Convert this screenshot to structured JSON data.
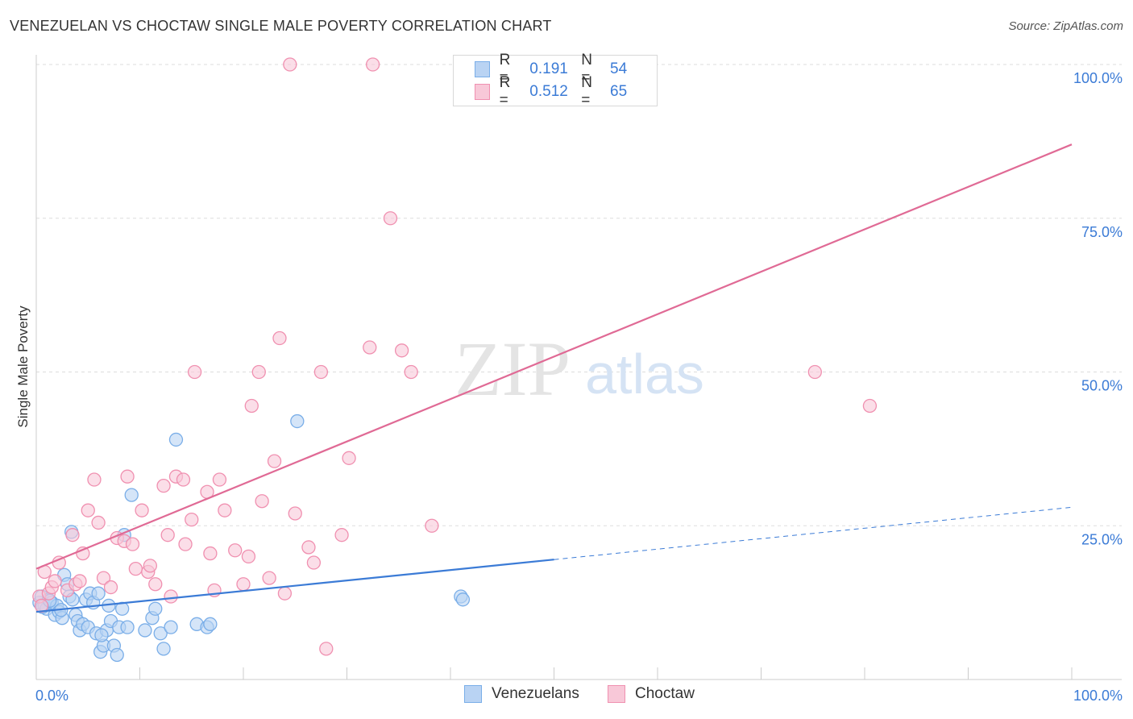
{
  "header": {
    "title": "VENEZUELAN VS CHOCTAW SINGLE MALE POVERTY CORRELATION CHART",
    "source": "Source: ZipAtlas.com"
  },
  "legend": {
    "rows": [
      {
        "r_label": "R =",
        "r_value": "0.191",
        "n_label": "N =",
        "n_value": "54",
        "color": "#7aaee8",
        "fill": "#b9d3f3"
      },
      {
        "r_label": "R =",
        "r_value": "0.512",
        "n_label": "N =",
        "n_value": "65",
        "color": "#f090b0",
        "fill": "#f8c8d8"
      }
    ]
  },
  "bottom_legend": [
    {
      "label": "Venezuelans",
      "color": "#7aaee8",
      "fill": "#b9d3f3"
    },
    {
      "label": "Choctaw",
      "color": "#f090b0",
      "fill": "#f8c8d8"
    }
  ],
  "watermark": {
    "zip": "ZIP",
    "atlas": "atlas"
  },
  "chart_data": {
    "type": "scatter",
    "ylabel": "Single Male Poverty",
    "xlim": [
      0,
      100
    ],
    "ylim": [
      0,
      100
    ],
    "x_tick_labels": [
      {
        "value": 0,
        "label": "0.0%"
      },
      {
        "value": 100,
        "label": "100.0%"
      }
    ],
    "y_tick_labels": [
      {
        "value": 25,
        "label": "25.0%"
      },
      {
        "value": 50,
        "label": "50.0%"
      },
      {
        "value": 75,
        "label": "75.0%"
      },
      {
        "value": 100,
        "label": "100.0%"
      }
    ],
    "grid": true,
    "series": [
      {
        "name": "Venezuelans",
        "color": "#3b7bd6",
        "point_stroke": "#7aaee8",
        "point_fill": "#b9d3f3",
        "points": [
          [
            0.3,
            12.5
          ],
          [
            0.5,
            13.5
          ],
          [
            0.8,
            12.0
          ],
          [
            1.0,
            11.5
          ],
          [
            1.2,
            13.0
          ],
          [
            1.5,
            12.5
          ],
          [
            1.8,
            10.5
          ],
          [
            2.0,
            12.0
          ],
          [
            2.2,
            11.0
          ],
          [
            2.5,
            10.0
          ],
          [
            2.7,
            17.0
          ],
          [
            3.0,
            15.5
          ],
          [
            3.2,
            13.5
          ],
          [
            3.5,
            13.0
          ],
          [
            3.4,
            24.0
          ],
          [
            3.8,
            10.5
          ],
          [
            4.0,
            9.5
          ],
          [
            4.2,
            8.0
          ],
          [
            4.5,
            9.0
          ],
          [
            4.8,
            13.0
          ],
          [
            5.0,
            8.5
          ],
          [
            5.2,
            14.0
          ],
          [
            5.5,
            12.5
          ],
          [
            5.8,
            7.5
          ],
          [
            6.0,
            14.0
          ],
          [
            6.2,
            4.5
          ],
          [
            6.5,
            5.5
          ],
          [
            6.8,
            8.0
          ],
          [
            7.0,
            12.0
          ],
          [
            7.2,
            9.5
          ],
          [
            7.5,
            5.5
          ],
          [
            7.8,
            4.0
          ],
          [
            8.0,
            8.5
          ],
          [
            8.3,
            11.5
          ],
          [
            8.5,
            23.5
          ],
          [
            8.8,
            8.5
          ],
          [
            9.2,
            30.0
          ],
          [
            10.5,
            8.0
          ],
          [
            11.2,
            10.0
          ],
          [
            11.5,
            11.5
          ],
          [
            12.0,
            7.5
          ],
          [
            12.3,
            5.0
          ],
          [
            13.0,
            8.5
          ],
          [
            13.5,
            39.0
          ],
          [
            15.5,
            9.0
          ],
          [
            16.5,
            8.5
          ],
          [
            16.8,
            9.0
          ],
          [
            25.2,
            42.0
          ],
          [
            41.0,
            13.5
          ],
          [
            41.2,
            13.0
          ],
          [
            0.6,
            11.8
          ],
          [
            1.3,
            12.8
          ],
          [
            2.4,
            11.3
          ],
          [
            6.3,
            7.2
          ]
        ],
        "trend": {
          "x0": 0,
          "y0": 11.0,
          "x1": 50,
          "y1": 19.5,
          "dashed_to_x": 100,
          "dashed_to_y": 28.0
        }
      },
      {
        "name": "Choctaw",
        "color": "#e06a95",
        "point_stroke": "#f090b0",
        "point_fill": "#f8c8d8",
        "points": [
          [
            0.3,
            13.5
          ],
          [
            0.5,
            12.0
          ],
          [
            0.8,
            17.5
          ],
          [
            1.2,
            14.0
          ],
          [
            1.5,
            15.0
          ],
          [
            1.8,
            16.0
          ],
          [
            2.2,
            19.0
          ],
          [
            3.0,
            14.5
          ],
          [
            3.5,
            23.5
          ],
          [
            3.8,
            15.5
          ],
          [
            4.2,
            16.0
          ],
          [
            4.5,
            20.5
          ],
          [
            5.0,
            27.5
          ],
          [
            5.6,
            32.5
          ],
          [
            6.0,
            25.5
          ],
          [
            6.5,
            16.5
          ],
          [
            7.2,
            15.0
          ],
          [
            7.8,
            23.0
          ],
          [
            8.5,
            22.5
          ],
          [
            8.8,
            33.0
          ],
          [
            9.3,
            22.0
          ],
          [
            9.6,
            18.0
          ],
          [
            10.2,
            27.5
          ],
          [
            10.8,
            17.5
          ],
          [
            11.0,
            18.5
          ],
          [
            11.5,
            15.5
          ],
          [
            12.3,
            31.5
          ],
          [
            12.7,
            23.5
          ],
          [
            13.0,
            13.5
          ],
          [
            13.5,
            33.0
          ],
          [
            14.2,
            32.5
          ],
          [
            14.4,
            22.0
          ],
          [
            15.0,
            26.0
          ],
          [
            15.3,
            50.0
          ],
          [
            16.5,
            30.5
          ],
          [
            16.8,
            20.5
          ],
          [
            17.2,
            14.5
          ],
          [
            17.7,
            32.5
          ],
          [
            18.2,
            27.5
          ],
          [
            19.2,
            21.0
          ],
          [
            20.0,
            15.5
          ],
          [
            20.5,
            20.0
          ],
          [
            20.8,
            44.5
          ],
          [
            21.5,
            50.0
          ],
          [
            21.8,
            29.0
          ],
          [
            22.5,
            16.5
          ],
          [
            23.0,
            35.5
          ],
          [
            23.5,
            55.5
          ],
          [
            24.0,
            14.0
          ],
          [
            25.0,
            27.0
          ],
          [
            26.3,
            21.5
          ],
          [
            26.8,
            19.0
          ],
          [
            27.5,
            50.0
          ],
          [
            28.0,
            5.0
          ],
          [
            29.5,
            23.5
          ],
          [
            30.2,
            36.0
          ],
          [
            32.2,
            54.0
          ],
          [
            34.2,
            75.0
          ],
          [
            35.3,
            53.5
          ],
          [
            36.2,
            50.0
          ],
          [
            38.2,
            25.0
          ],
          [
            24.5,
            100.0
          ],
          [
            32.5,
            100.0
          ],
          [
            75.2,
            50.0
          ],
          [
            80.5,
            44.5
          ]
        ],
        "trend": {
          "x0": 0,
          "y0": 18.0,
          "x1": 100,
          "y1": 87.0
        }
      }
    ]
  }
}
